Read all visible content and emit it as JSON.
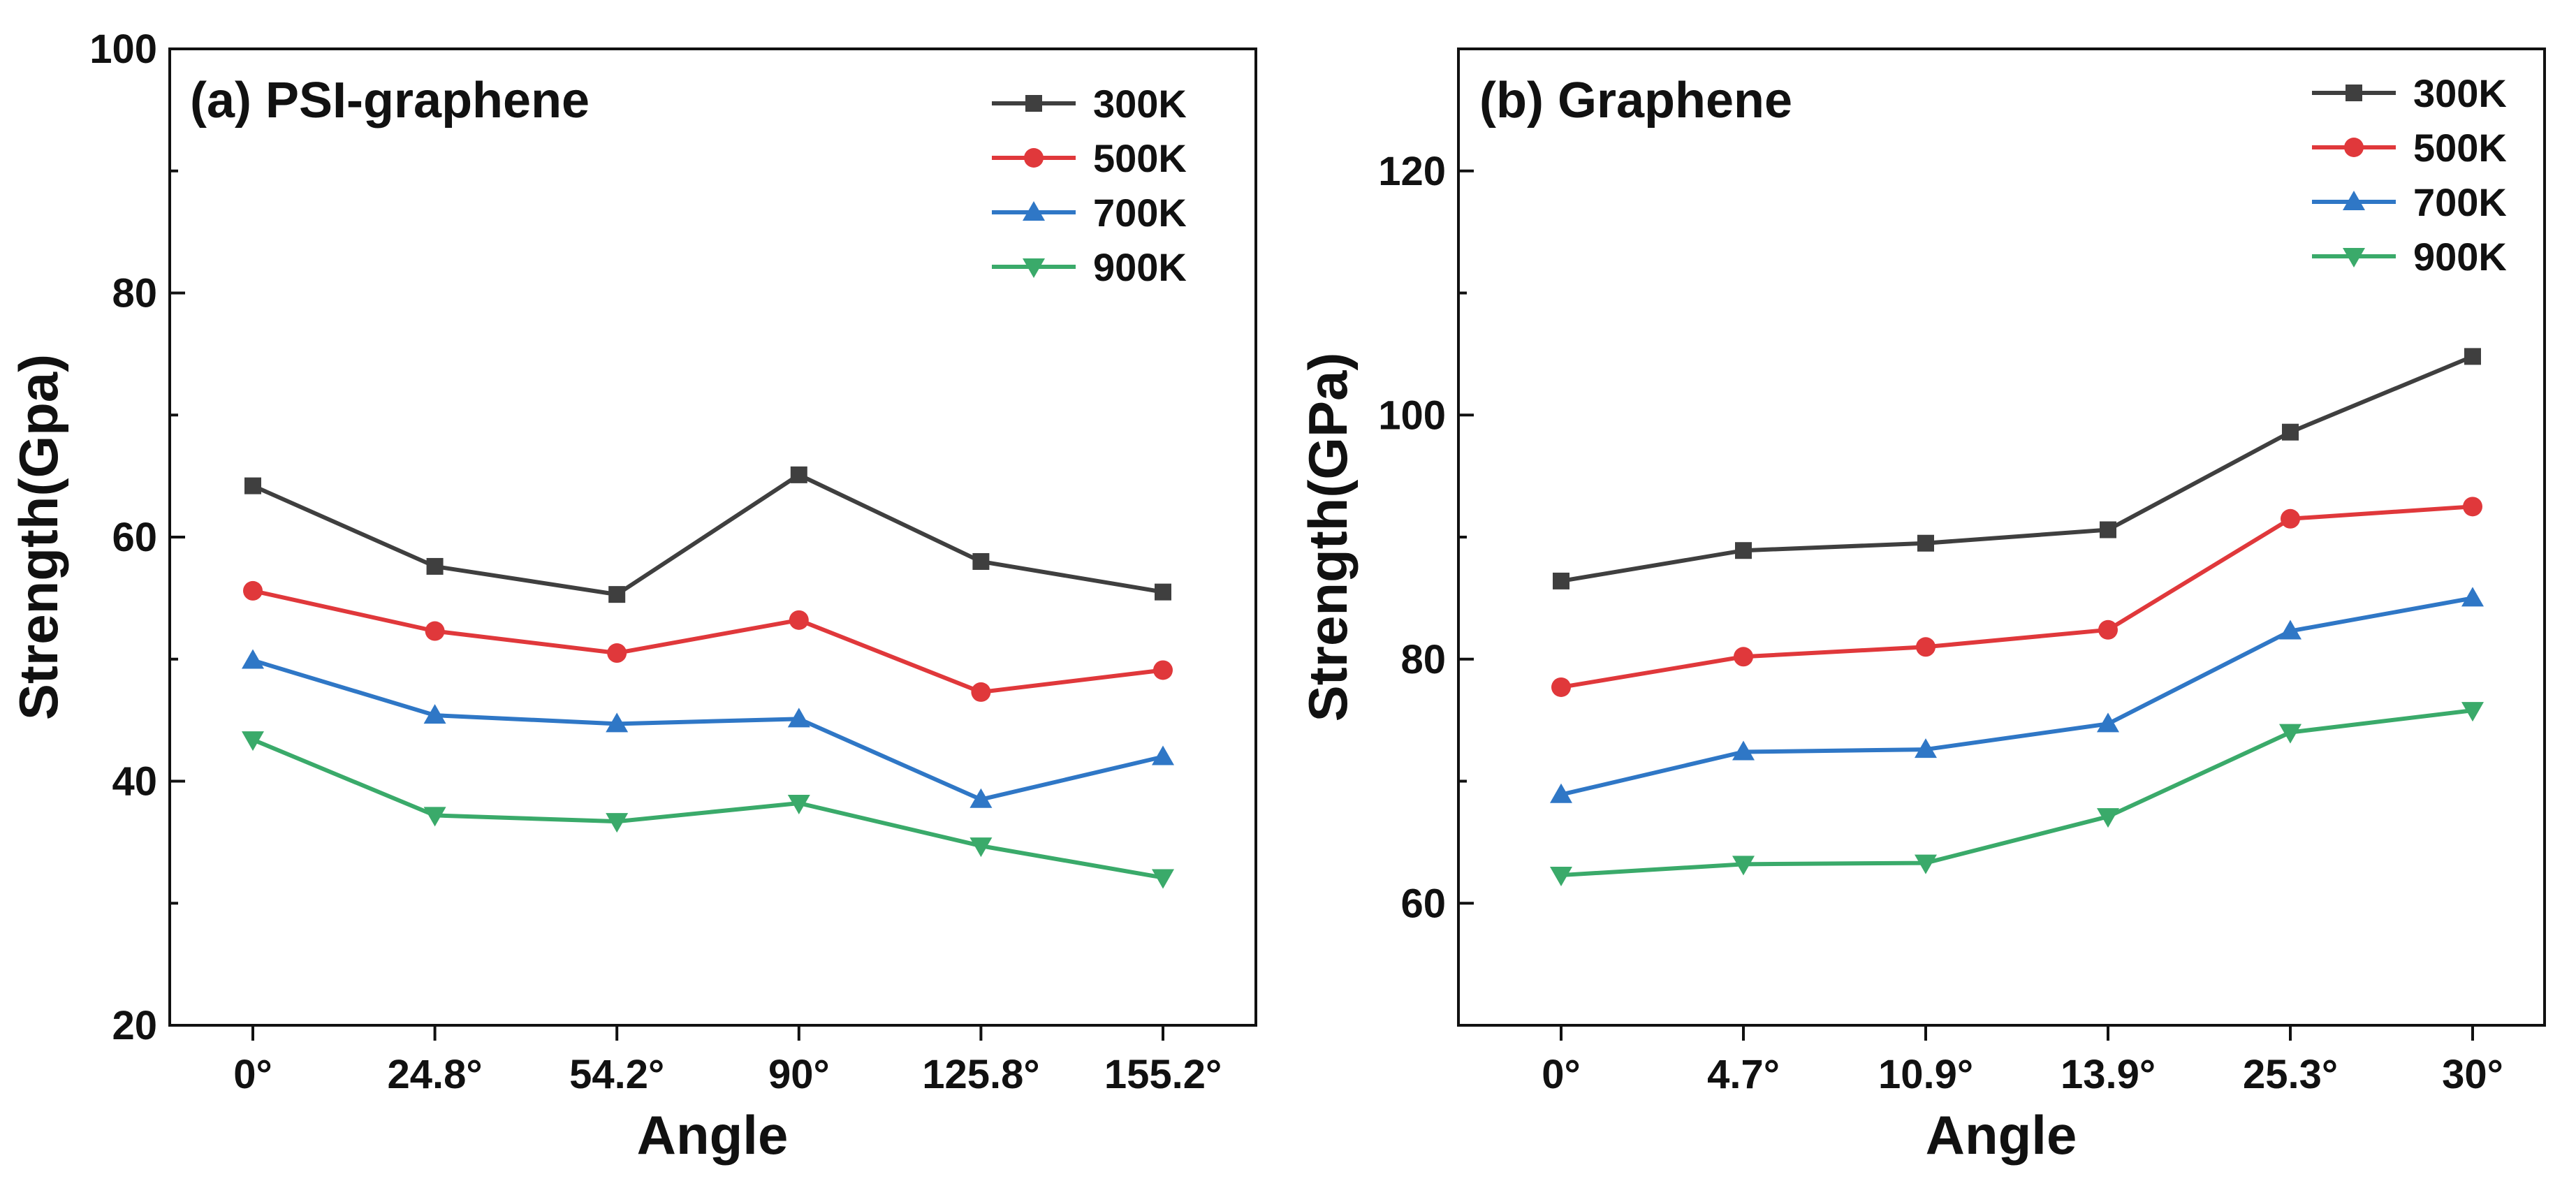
{
  "chart_data": [
    {
      "type": "line",
      "title": "(a) PSI-graphene",
      "xlabel": "Angle",
      "ylabel": "Strength(Gpa)",
      "categories": [
        "0°",
        "24.8°",
        "54.2°",
        "90°",
        "125.8°",
        "155.2°"
      ],
      "ylim": [
        20,
        100
      ],
      "yticks": [
        20,
        40,
        60,
        80,
        100
      ],
      "grid": false,
      "legend_position": "top-right",
      "series": [
        {
          "name": "300K",
          "color": "#3f3f3f",
          "marker": "square",
          "values": [
            64.2,
            57.6,
            55.3,
            65.1,
            58.0,
            55.5
          ]
        },
        {
          "name": "500K",
          "color": "#e0383b",
          "marker": "circle",
          "values": [
            55.6,
            52.3,
            50.5,
            53.2,
            47.3,
            49.1
          ]
        },
        {
          "name": "700K",
          "color": "#2f77c6",
          "marker": "triangle-up",
          "values": [
            49.9,
            45.4,
            44.7,
            45.1,
            38.5,
            42.0
          ]
        },
        {
          "name": "900K",
          "color": "#3aaa6a",
          "marker": "triangle-down",
          "values": [
            43.4,
            37.2,
            36.7,
            38.2,
            34.7,
            32.1
          ]
        }
      ]
    },
    {
      "type": "line",
      "title": "(b) Graphene",
      "xlabel": "Angle",
      "ylabel": "Strength(GPa)",
      "categories": [
        "0°",
        "4.7°",
        "10.9°",
        "13.9°",
        "25.3°",
        "30°"
      ],
      "ylim": [
        50,
        130
      ],
      "yticks": [
        60,
        80,
        100,
        120
      ],
      "grid": false,
      "legend_position": "top-right",
      "series": [
        {
          "name": "300K",
          "color": "#3f3f3f",
          "marker": "square",
          "values": [
            86.4,
            88.9,
            89.5,
            90.6,
            98.6,
            104.8
          ]
        },
        {
          "name": "500K",
          "color": "#e0383b",
          "marker": "circle",
          "values": [
            77.7,
            80.2,
            81.0,
            82.4,
            91.5,
            92.5
          ]
        },
        {
          "name": "700K",
          "color": "#2f77c6",
          "marker": "triangle-up",
          "values": [
            68.9,
            72.4,
            72.6,
            74.7,
            82.3,
            85.0
          ]
        },
        {
          "name": "900K",
          "color": "#3aaa6a",
          "marker": "triangle-down",
          "values": [
            62.3,
            63.2,
            63.3,
            67.1,
            74.0,
            75.8
          ]
        }
      ]
    }
  ]
}
